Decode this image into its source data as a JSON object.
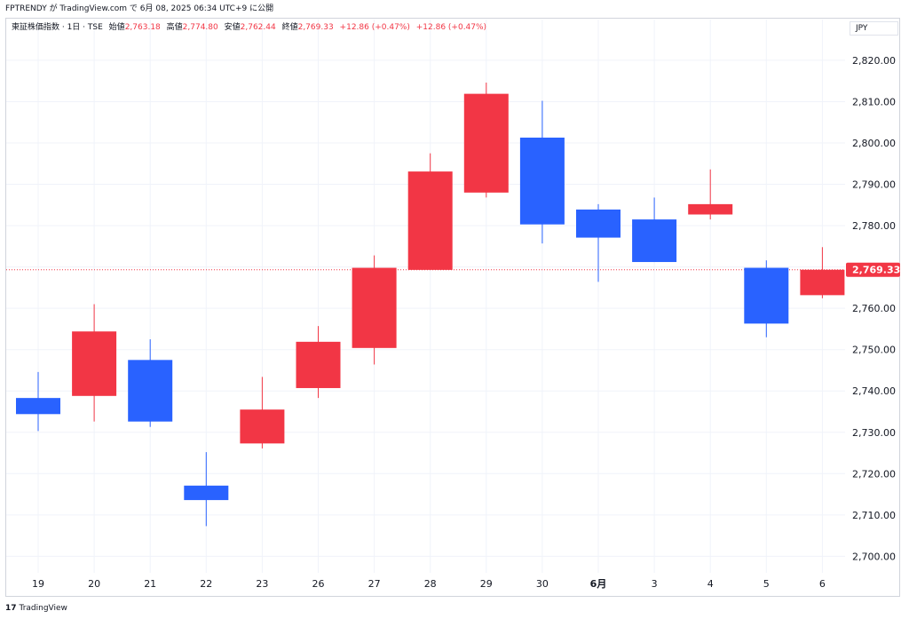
{
  "header": {
    "caption": "FPTRENDY が TradingView.com で 6月 08, 2025 06:34 UTC+9 に公開"
  },
  "legend": {
    "symbol": "東証株価指数 · 1日 · TSE",
    "open_label": "始値",
    "open": "2,763.18",
    "high_label": "高値",
    "high": "2,774.80",
    "low_label": "安値",
    "low": "2,762.44",
    "close_label": "終値",
    "close": "2,769.33",
    "change": "+12.86 (+0.47%)",
    "change2": "+12.86 (+0.47%)"
  },
  "currency": "JPY",
  "footer": {
    "logo": "17",
    "brand": "TradingView"
  },
  "colors": {
    "up": "#f23645",
    "down": "#2962ff",
    "grid": "#f0f3fa",
    "last_line": "#f23645"
  },
  "chart_data": {
    "type": "candlestick",
    "ylim": [
      2696,
      2826
    ],
    "yticks": [
      2700,
      2710,
      2720,
      2730,
      2740,
      2750,
      2760,
      2770,
      2780,
      2790,
      2800,
      2810,
      2820
    ],
    "ytick_labels": [
      "2,700.00",
      "2,710.00",
      "2,720.00",
      "2,730.00",
      "2,740.00",
      "2,750.00",
      "2,760.00",
      "",
      "2,780.00",
      "2,790.00",
      "2,800.00",
      "2,810.00",
      "2,820.00"
    ],
    "categories": [
      "19",
      "20",
      "21",
      "22",
      "23",
      "26",
      "27",
      "28",
      "29",
      "30",
      "6月",
      "3",
      "4",
      "5",
      "6"
    ],
    "bold_categories": [
      "6月"
    ],
    "candles": [
      {
        "open": 2738.3,
        "high": 2744.6,
        "low": 2730.3,
        "close": 2734.4
      },
      {
        "open": 2738.8,
        "high": 2761.0,
        "low": 2732.6,
        "close": 2754.4
      },
      {
        "open": 2747.5,
        "high": 2752.5,
        "low": 2731.3,
        "close": 2732.6
      },
      {
        "open": 2717.1,
        "high": 2725.2,
        "low": 2707.3,
        "close": 2713.6
      },
      {
        "open": 2727.3,
        "high": 2743.4,
        "low": 2726.1,
        "close": 2735.5
      },
      {
        "open": 2740.7,
        "high": 2755.7,
        "low": 2738.3,
        "close": 2751.9
      },
      {
        "open": 2750.4,
        "high": 2772.8,
        "low": 2746.4,
        "close": 2769.8
      },
      {
        "open": 2769.3,
        "high": 2797.5,
        "low": 2769.3,
        "close": 2793.1
      },
      {
        "open": 2788.0,
        "high": 2814.6,
        "low": 2786.8,
        "close": 2811.9
      },
      {
        "open": 2801.3,
        "high": 2810.2,
        "low": 2775.7,
        "close": 2780.3
      },
      {
        "open": 2783.9,
        "high": 2785.2,
        "low": 2766.4,
        "close": 2777.1
      },
      {
        "open": 2781.5,
        "high": 2786.8,
        "low": 2771.2,
        "close": 2771.2
      },
      {
        "open": 2782.7,
        "high": 2793.6,
        "low": 2781.5,
        "close": 2785.2
      },
      {
        "open": 2769.8,
        "high": 2771.6,
        "low": 2753.0,
        "close": 2756.3
      },
      {
        "open": 2763.18,
        "high": 2774.8,
        "low": 2762.44,
        "close": 2769.33
      }
    ],
    "last_price": 2769.33,
    "last_price_label": "2,769.33"
  }
}
